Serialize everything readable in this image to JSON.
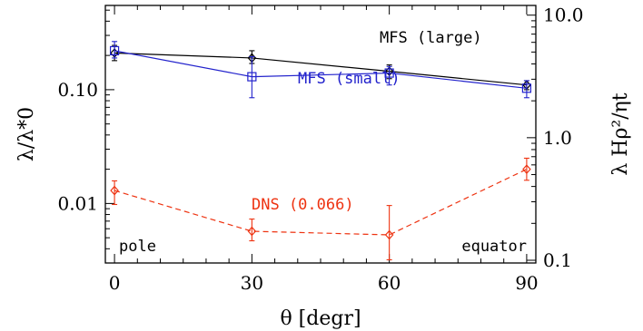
{
  "chart_data": {
    "type": "line",
    "x": [
      0,
      30,
      60,
      90
    ],
    "xlabel": "θ [degr]",
    "ylabel_left": "λ/λ*0",
    "ylabel_right": "λ Hρ²/ηt",
    "xlim": [
      -2,
      92
    ],
    "ylim_left": [
      0.003,
      0.55
    ],
    "ylim_right": [
      0.095,
      12.0
    ],
    "left_log_scale": true,
    "right_log_scale": true,
    "x_ticks": [
      0,
      30,
      60,
      90
    ],
    "x_tick_labels": [
      "0",
      "30",
      "60",
      "90"
    ],
    "left_ticks": [
      0.01,
      0.1
    ],
    "left_tick_labels": [
      "0.01",
      "0.10"
    ],
    "right_ticks": [
      0.1,
      1.0,
      10.0
    ],
    "right_tick_labels": [
      "0.1",
      "1.0",
      "10.0"
    ],
    "grid": false,
    "series": [
      {
        "name": "MFS (large)",
        "color": "#000000",
        "marker": "diamond",
        "line": "solid",
        "y": [
          0.21,
          0.19,
          0.145,
          0.11
        ],
        "err_low": [
          0.18,
          0.17,
          0.125,
          0.1
        ],
        "err_high": [
          0.245,
          0.22,
          0.165,
          0.12
        ]
      },
      {
        "name": "MFS (small)",
        "color": "#2222cc",
        "marker": "square",
        "line": "solid",
        "y": [
          0.22,
          0.13,
          0.14,
          0.103
        ],
        "err_low": [
          0.19,
          0.085,
          0.11,
          0.085
        ],
        "err_high": [
          0.265,
          0.195,
          0.16,
          0.12
        ]
      },
      {
        "name": "DNS (0.066)",
        "color": "#ee3311",
        "marker": "diamond",
        "line": "dashed",
        "y": [
          0.013,
          0.0057,
          0.0053,
          0.02
        ],
        "err_low": [
          0.0098,
          0.0047,
          0.0032,
          0.016
        ],
        "err_high": [
          0.0158,
          0.0073,
          0.0096,
          0.025
        ]
      }
    ],
    "annotations": [
      {
        "text": "MFS (large)",
        "color": "#000000"
      },
      {
        "text": "MFS (small)",
        "color": "#2222cc"
      },
      {
        "text": "DNS (0.066)",
        "color": "#ee3311"
      },
      {
        "text": "pole",
        "color": "#000000"
      },
      {
        "text": "equator",
        "color": "#000000"
      }
    ]
  }
}
